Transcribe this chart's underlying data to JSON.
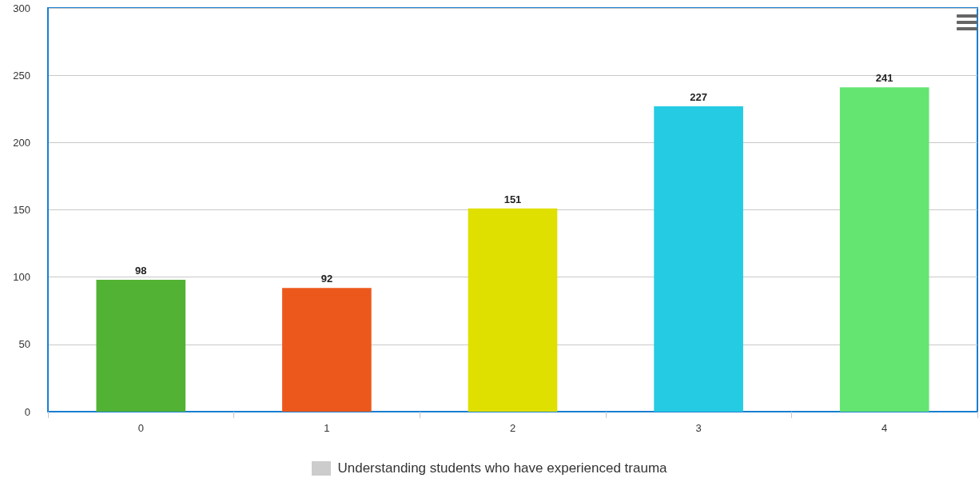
{
  "chart_data": {
    "type": "bar",
    "categories": [
      "0",
      "1",
      "2",
      "3",
      "4"
    ],
    "series": [
      {
        "name": "Understanding students who have experienced trauma",
        "color": "#cccccc",
        "colors": [
          "#52b233",
          "#ec581c",
          "#dfe000",
          "#24cbe3",
          "#64e572"
        ],
        "values": [
          98,
          92,
          151,
          227,
          241
        ]
      }
    ],
    "ylim": [
      0,
      300
    ],
    "yticks": [
      0,
      50,
      100,
      150,
      200,
      250,
      300
    ],
    "grid": "y",
    "data_labels": true,
    "legend": "bottom"
  }
}
